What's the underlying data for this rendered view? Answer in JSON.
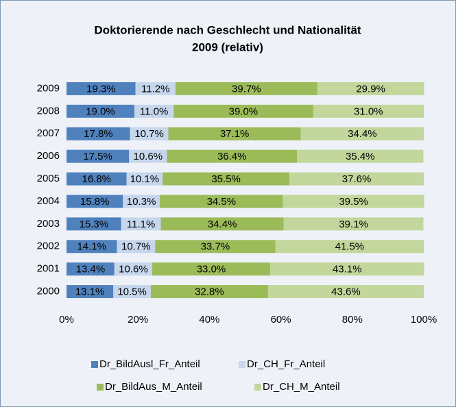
{
  "chart_data": {
    "type": "stacked-bar-horizontal",
    "title": "Doktorierende nach Geschlecht und Nationalität",
    "subtitle": "2009 (relativ)",
    "categories": [
      "2009",
      "2008",
      "2007",
      "2006",
      "2005",
      "2004",
      "2003",
      "2002",
      "2001",
      "2000"
    ],
    "series": [
      {
        "name": "Dr_BildAusl_Fr_Anteil",
        "color": "#4f81bd",
        "values": [
          19.3,
          19.0,
          17.8,
          17.5,
          16.8,
          15.8,
          15.3,
          14.1,
          13.4,
          13.1
        ],
        "value_labels": [
          "19.3%",
          "19.0%",
          "17.8%",
          "17.5%",
          "16.8%",
          "15.8%",
          "15.3%",
          "14.1%",
          "13.4%",
          "13.1%"
        ]
      },
      {
        "name": "Dr_CH_Fr_Anteil",
        "color": "#c6d6ec",
        "values": [
          11.2,
          11.0,
          10.7,
          10.6,
          10.1,
          10.3,
          11.1,
          10.7,
          10.6,
          10.5
        ],
        "value_labels": [
          "11.2%",
          "11.0%",
          "10.7%",
          "10.6%",
          "10.1%",
          "10.3%",
          "11.1%",
          "10.7%",
          "10.6%",
          "10.5%"
        ]
      },
      {
        "name": "Dr_BildAus_M_Anteil",
        "color": "#9bbb59",
        "values": [
          39.7,
          39.0,
          37.1,
          36.4,
          35.5,
          34.5,
          34.4,
          33.7,
          33.0,
          32.8
        ],
        "value_labels": [
          "39.7%",
          "39.0%",
          "37.1%",
          "36.4%",
          "35.5%",
          "34.5%",
          "34.4%",
          "33.7%",
          "33.0%",
          "32.8%"
        ]
      },
      {
        "name": "Dr_CH_M_Anteil",
        "color": "#c3d69b",
        "values": [
          29.9,
          31.0,
          34.4,
          35.4,
          37.6,
          39.5,
          39.1,
          41.5,
          43.1,
          43.6
        ],
        "value_labels": [
          "29.9%",
          "31.0%",
          "34.4%",
          "35.4%",
          "37.6%",
          "39.5%",
          "39.1%",
          "41.5%",
          "43.1%",
          "43.6%"
        ]
      }
    ],
    "xlim": [
      0,
      100
    ],
    "xticks": [
      {
        "value": 0,
        "label": "0%"
      },
      {
        "value": 20,
        "label": "20%"
      },
      {
        "value": 40,
        "label": "40%"
      },
      {
        "value": 60,
        "label": "60%"
      },
      {
        "value": 80,
        "label": "80%"
      },
      {
        "value": 100,
        "label": "100%"
      }
    ],
    "legend": "bottom"
  }
}
